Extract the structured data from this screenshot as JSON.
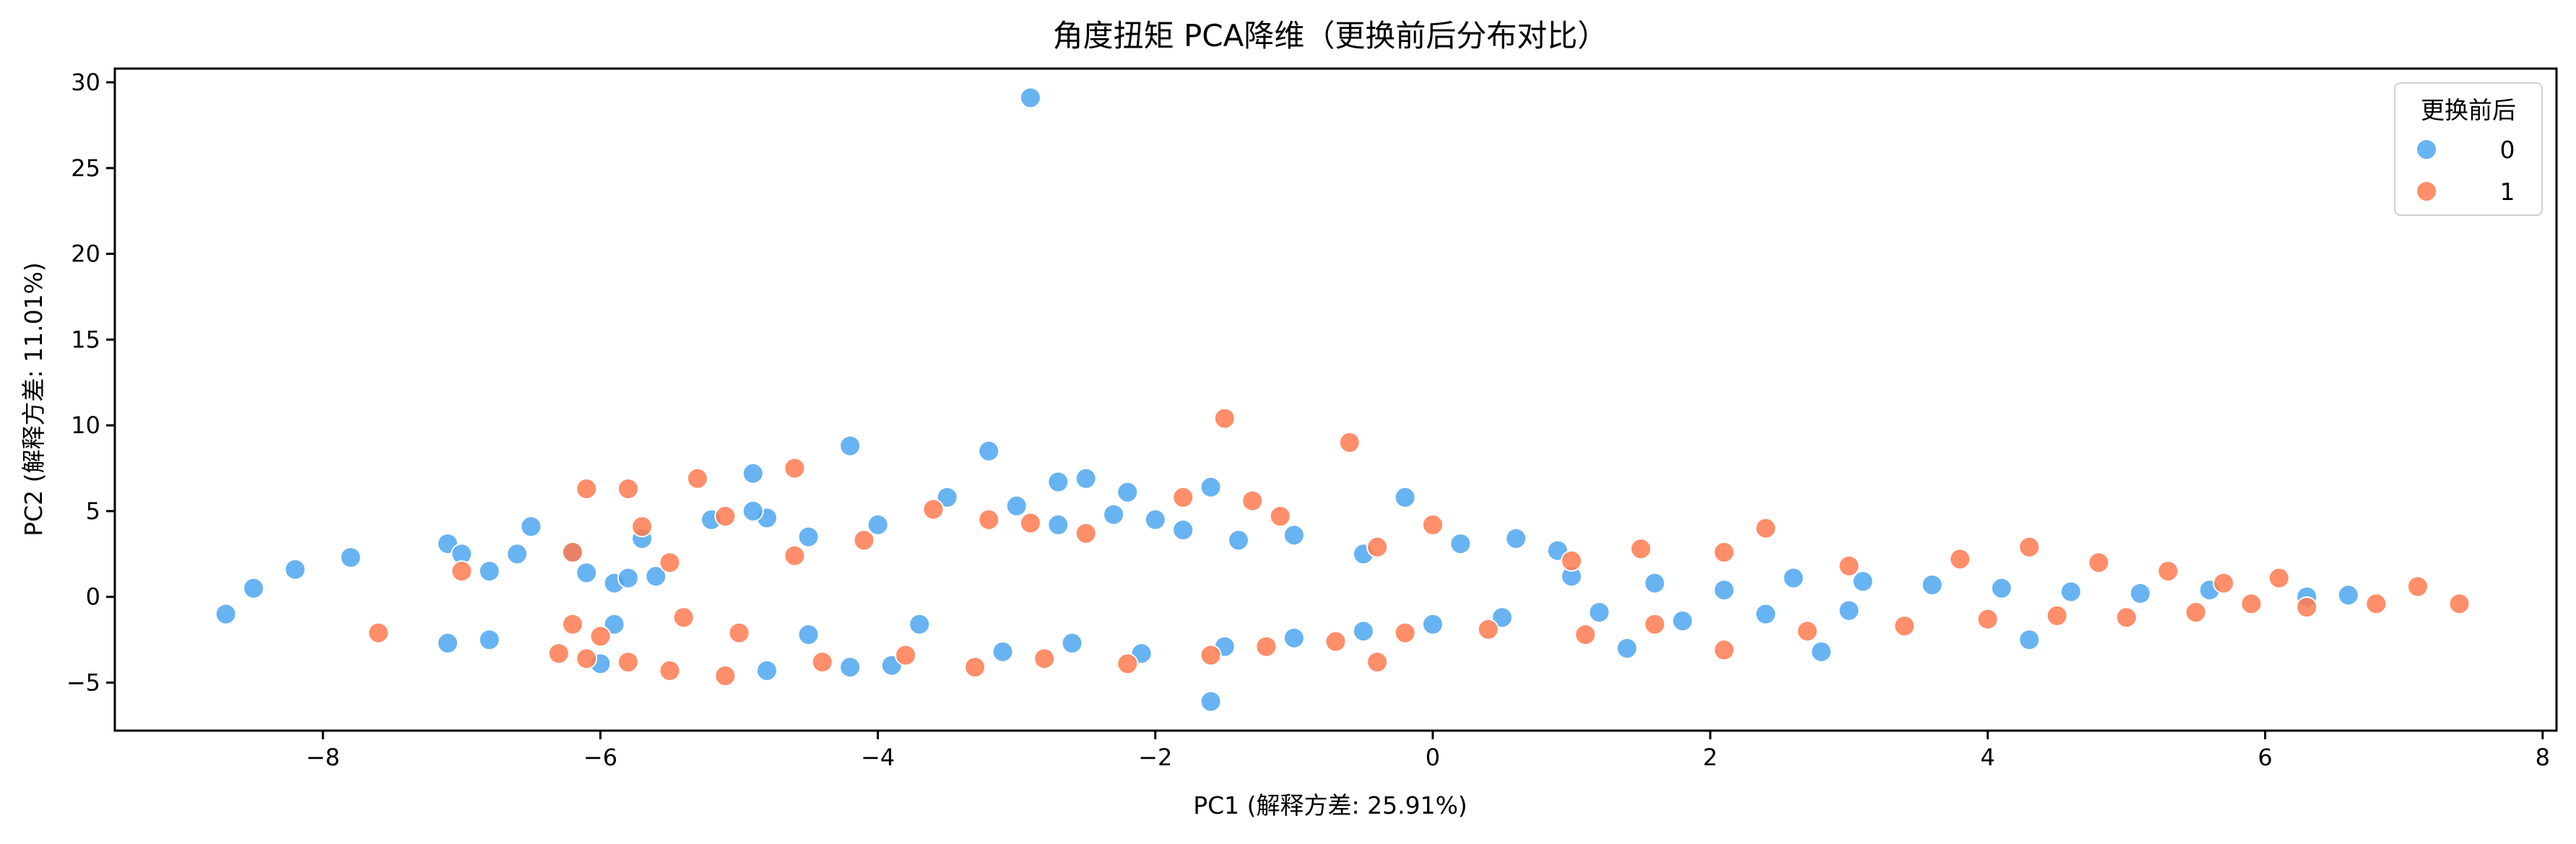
{
  "chart_data": {
    "type": "scatter",
    "title": "角度扭矩 PCA降维（更换前后分布对比）",
    "xlabel": "PC1 (解释方差: 25.91%)",
    "ylabel": "PC2 (解释方差: 11.01%)",
    "xlim": [
      -9.5,
      8.1
    ],
    "ylim": [
      -7.8,
      30.8
    ],
    "xticks": [
      -8,
      -6,
      -4,
      -2,
      0,
      2,
      4,
      6,
      8
    ],
    "xtick_labels": [
      "−8",
      "−6",
      "−4",
      "−2",
      "0",
      "2",
      "4",
      "6",
      "8"
    ],
    "yticks": [
      -5,
      0,
      5,
      10,
      15,
      20,
      25,
      30
    ],
    "ytick_labels": [
      "−5",
      "0",
      "5",
      "10",
      "15",
      "20",
      "25",
      "30"
    ],
    "grid": false,
    "legend": {
      "title": "更换前后",
      "placement": "top-right"
    },
    "series": [
      {
        "name": "0",
        "color": "#4da6f0",
        "points": [
          [
            -8.7,
            -1.0
          ],
          [
            -8.5,
            0.5
          ],
          [
            -8.2,
            1.6
          ],
          [
            -7.8,
            2.3
          ],
          [
            -7.1,
            3.1
          ],
          [
            -7.0,
            2.5
          ],
          [
            -6.8,
            1.5
          ],
          [
            -7.1,
            -2.7
          ],
          [
            -6.8,
            -2.5
          ],
          [
            -6.6,
            2.5
          ],
          [
            -6.5,
            4.1
          ],
          [
            -6.2,
            2.6
          ],
          [
            -6.1,
            1.4
          ],
          [
            -5.9,
            0.8
          ],
          [
            -5.7,
            3.4
          ],
          [
            -5.8,
            1.1
          ],
          [
            -5.6,
            1.2
          ],
          [
            -5.2,
            4.5
          ],
          [
            -4.9,
            7.2
          ],
          [
            -4.8,
            4.6
          ],
          [
            -4.9,
            5.0
          ],
          [
            -4.2,
            8.8
          ],
          [
            -3.2,
            8.5
          ],
          [
            -2.9,
            29.1
          ],
          [
            -2.7,
            6.7
          ],
          [
            -2.5,
            6.9
          ],
          [
            -2.2,
            6.1
          ],
          [
            -1.6,
            6.4
          ],
          [
            -0.2,
            5.8
          ],
          [
            0.6,
            3.4
          ],
          [
            0.9,
            2.7
          ],
          [
            1.4,
            -3.0
          ],
          [
            2.8,
            -3.2
          ],
          [
            4.3,
            -2.5
          ],
          [
            6.6,
            0.1
          ],
          [
            6.3,
            0.0
          ],
          [
            -1.6,
            -6.1
          ],
          [
            -4.8,
            -4.3
          ],
          [
            -4.2,
            -4.1
          ],
          [
            -3.9,
            -4.0
          ],
          [
            -6.0,
            -3.9
          ],
          [
            -5.9,
            -1.6
          ],
          [
            -4.5,
            3.5
          ],
          [
            -4.0,
            4.2
          ],
          [
            -3.5,
            5.8
          ],
          [
            -3.0,
            5.3
          ],
          [
            -2.7,
            4.2
          ],
          [
            -2.3,
            4.8
          ],
          [
            -2.0,
            4.5
          ],
          [
            -1.8,
            3.9
          ],
          [
            -1.4,
            3.3
          ],
          [
            -1.0,
            3.6
          ],
          [
            -0.5,
            2.5
          ],
          [
            0.2,
            3.1
          ],
          [
            1.0,
            1.2
          ],
          [
            1.6,
            0.8
          ],
          [
            2.1,
            0.4
          ],
          [
            2.6,
            1.1
          ],
          [
            3.1,
            0.9
          ],
          [
            3.6,
            0.7
          ],
          [
            4.1,
            0.5
          ],
          [
            4.6,
            0.3
          ],
          [
            5.1,
            0.2
          ],
          [
            5.6,
            0.4
          ],
          [
            -4.5,
            -2.2
          ],
          [
            -3.7,
            -1.6
          ],
          [
            -3.1,
            -3.2
          ],
          [
            -2.6,
            -2.7
          ],
          [
            -2.1,
            -3.3
          ],
          [
            -1.5,
            -2.9
          ],
          [
            -1.0,
            -2.4
          ],
          [
            -0.5,
            -2.0
          ],
          [
            0.0,
            -1.6
          ],
          [
            0.5,
            -1.2
          ],
          [
            1.2,
            -0.9
          ],
          [
            1.8,
            -1.4
          ],
          [
            2.4,
            -1.0
          ],
          [
            3.0,
            -0.8
          ]
        ]
      },
      {
        "name": "1",
        "color": "#ff7a50",
        "points": [
          [
            -7.6,
            -2.1
          ],
          [
            -7.0,
            1.5
          ],
          [
            -6.2,
            2.6
          ],
          [
            -6.1,
            6.3
          ],
          [
            -5.8,
            6.3
          ],
          [
            -5.7,
            4.1
          ],
          [
            -5.5,
            2.0
          ],
          [
            -5.3,
            6.9
          ],
          [
            -5.1,
            4.7
          ],
          [
            -4.6,
            7.5
          ],
          [
            -1.5,
            10.4
          ],
          [
            -0.6,
            9.0
          ],
          [
            2.4,
            4.0
          ],
          [
            7.1,
            0.6
          ],
          [
            7.4,
            -0.4
          ],
          [
            6.8,
            -0.4
          ],
          [
            6.1,
            1.1
          ],
          [
            6.3,
            -0.6
          ],
          [
            -5.1,
            -4.6
          ],
          [
            -6.3,
            -3.3
          ],
          [
            -6.1,
            -3.6
          ],
          [
            -5.8,
            -3.8
          ],
          [
            -5.5,
            -4.3
          ],
          [
            -0.4,
            -3.8
          ],
          [
            -6.2,
            -1.6
          ],
          [
            -6.0,
            -2.3
          ],
          [
            -5.4,
            -1.2
          ],
          [
            -5.0,
            -2.1
          ],
          [
            -4.6,
            2.4
          ],
          [
            -4.1,
            3.3
          ],
          [
            -3.6,
            5.1
          ],
          [
            -3.2,
            4.5
          ],
          [
            -2.9,
            4.3
          ],
          [
            -2.5,
            3.7
          ],
          [
            -1.8,
            5.8
          ],
          [
            -1.3,
            5.6
          ],
          [
            -1.1,
            4.7
          ],
          [
            -0.4,
            2.9
          ],
          [
            0.0,
            4.2
          ],
          [
            1.0,
            2.1
          ],
          [
            1.5,
            2.8
          ],
          [
            2.1,
            2.6
          ],
          [
            3.0,
            1.8
          ],
          [
            3.8,
            2.2
          ],
          [
            4.3,
            2.9
          ],
          [
            4.8,
            2.0
          ],
          [
            5.3,
            1.5
          ],
          [
            5.7,
            0.8
          ],
          [
            5.9,
            -0.4
          ],
          [
            -4.4,
            -3.8
          ],
          [
            -3.8,
            -3.4
          ],
          [
            -3.3,
            -4.1
          ],
          [
            -2.8,
            -3.6
          ],
          [
            -2.2,
            -3.9
          ],
          [
            -1.6,
            -3.4
          ],
          [
            -1.2,
            -2.9
          ],
          [
            -0.7,
            -2.6
          ],
          [
            -0.2,
            -2.1
          ],
          [
            0.4,
            -1.9
          ],
          [
            1.1,
            -2.2
          ],
          [
            1.6,
            -1.6
          ],
          [
            2.1,
            -3.1
          ],
          [
            2.7,
            -2.0
          ],
          [
            3.4,
            -1.7
          ],
          [
            4.0,
            -1.3
          ],
          [
            4.5,
            -1.1
          ],
          [
            5.0,
            -1.2
          ],
          [
            5.5,
            -0.9
          ]
        ]
      }
    ]
  }
}
